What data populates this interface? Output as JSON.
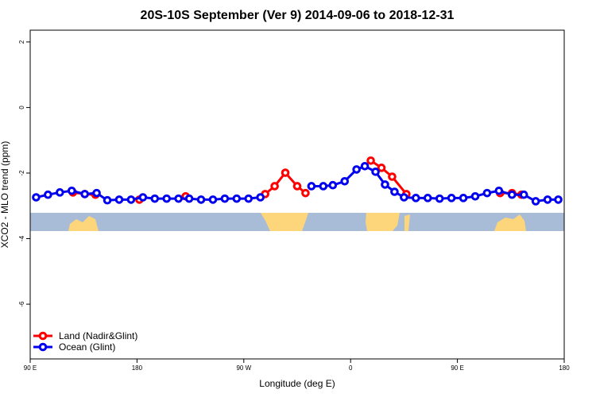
{
  "chart_data": {
    "type": "line",
    "title": "20S-10S September (Ver 9)   2014-09-06 to 2018-12-31",
    "x_label": "Longitude (deg E)",
    "y_label": "XCO2 - MLO trend (ppm)",
    "xlim": [
      90,
      540
    ],
    "xticks": [
      {
        "value": 90,
        "label": "90 E"
      },
      {
        "value": 180,
        "label": "180"
      },
      {
        "value": 270,
        "label": "90 W"
      },
      {
        "value": 360,
        "label": "0"
      },
      {
        "value": 450,
        "label": "90 E"
      },
      {
        "value": 540,
        "label": "180"
      }
    ],
    "ylim": [
      -7.67,
      2.36
    ],
    "yticks": [
      2,
      0,
      -2,
      -4,
      -6
    ],
    "legend": "bottom-left",
    "series": [
      {
        "name": "Land (Nadir&Glint)",
        "color": "#ff0000",
        "x": [
          126,
          136,
          145,
          160,
          182,
          200,
          221,
          250,
          288,
          296,
          305,
          315,
          322,
          350,
          377,
          386,
          395,
          407,
          450,
          486,
          496,
          504
        ],
        "values": [
          -2.59,
          -2.64,
          -2.66,
          null,
          -2.81,
          null,
          -2.71,
          null,
          -2.64,
          -2.4,
          -1.99,
          -2.4,
          -2.61,
          null,
          -1.62,
          -1.84,
          -2.11,
          -2.64,
          null,
          -2.61,
          -2.61,
          -2.66
        ]
      },
      {
        "name": "Ocean (Glint)",
        "color": "#0000ee",
        "x": [
          95,
          105,
          115,
          125,
          136,
          146,
          155,
          165,
          175,
          185,
          195,
          205,
          215,
          224,
          234,
          244,
          254,
          264,
          274,
          284,
          305,
          327,
          337,
          345,
          355,
          365,
          372,
          381,
          389,
          397,
          405,
          415,
          425,
          435,
          445,
          455,
          465,
          475,
          485,
          496,
          506,
          516,
          526,
          535
        ],
        "values": [
          -2.74,
          -2.66,
          -2.59,
          -2.54,
          -2.64,
          -2.61,
          -2.83,
          -2.81,
          -2.81,
          -2.74,
          -2.78,
          -2.78,
          -2.78,
          -2.78,
          -2.81,
          -2.81,
          -2.78,
          -2.78,
          -2.78,
          -2.74,
          null,
          -2.4,
          -2.4,
          -2.37,
          -2.25,
          -1.89,
          -1.79,
          -1.96,
          -2.35,
          -2.57,
          -2.74,
          -2.76,
          -2.76,
          -2.78,
          -2.76,
          -2.76,
          -2.71,
          -2.61,
          -2.54,
          -2.66,
          -2.66,
          -2.86,
          -2.81,
          -2.81
        ]
      }
    ]
  }
}
